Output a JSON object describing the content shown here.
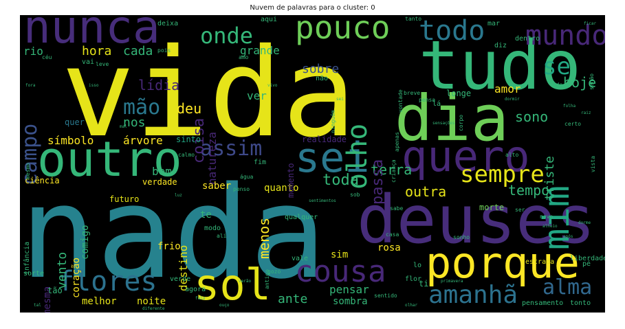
{
  "title": "Nuvem de palavras para o cluster: 0",
  "colors": {
    "yellow": "#e6e419",
    "green": "#35b779",
    "teal": "#26828e",
    "blue": "#31688e",
    "purple": "#482878",
    "violet": "#443983",
    "lime": "#90d743",
    "dark": "#3e4989"
  },
  "words": [
    {
      "text": "vida",
      "color": "#e6e419"
    },
    {
      "text": "nada",
      "color": "#26828e"
    },
    {
      "text": "tudo",
      "color": "#35b779"
    },
    {
      "text": "dia",
      "color": "#6ece58"
    },
    {
      "text": "deuses",
      "color": "#472d7b"
    },
    {
      "text": "outro",
      "color": "#35b779"
    },
    {
      "text": "nunca",
      "color": "#472d7b"
    },
    {
      "text": "sei",
      "color": "#2a788e"
    },
    {
      "text": "quero",
      "color": "#482878"
    },
    {
      "text": "porque",
      "color": "#fde725"
    },
    {
      "text": "sol",
      "color": "#e6e419"
    },
    {
      "text": "pouco",
      "color": "#6ece58"
    },
    {
      "text": "flores",
      "color": "#2c728e"
    },
    {
      "text": "cousa",
      "color": "#482878"
    },
    {
      "text": "mim",
      "color": "#22a884"
    },
    {
      "text": "mundo",
      "color": "#482878"
    },
    {
      "text": "todo",
      "color": "#2a788e"
    },
    {
      "text": "onde",
      "color": "#35b779"
    },
    {
      "text": "olho",
      "color": "#35b779"
    },
    {
      "text": "sempre",
      "color": "#e6e419"
    },
    {
      "text": "amanhã",
      "color": "#2c728e"
    },
    {
      "text": "alma",
      "color": "#31688e"
    },
    {
      "text": "campo",
      "color": "#3b528b"
    },
    {
      "text": "se",
      "color": "#22a884"
    },
    {
      "text": "assim",
      "color": "#3e4989"
    },
    {
      "text": "mão",
      "color": "#2a788e"
    },
    {
      "text": "hora",
      "color": "#e6e419"
    },
    {
      "text": "cada",
      "color": "#35b779"
    },
    {
      "text": "rio",
      "color": "#35b779"
    },
    {
      "text": "grande",
      "color": "#35b779"
    },
    {
      "text": "sobre",
      "color": "#3b528b"
    },
    {
      "text": "hoje",
      "color": "#35b779"
    },
    {
      "text": "sono",
      "color": "#35b779"
    },
    {
      "text": "amor",
      "color": "#fde725"
    },
    {
      "text": "terra",
      "color": "#35b779"
    },
    {
      "text": "outra",
      "color": "#e6e419"
    },
    {
      "text": "tempo",
      "color": "#35b779"
    },
    {
      "text": "toda",
      "color": "#35b779"
    },
    {
      "text": "triste",
      "color": "#35b779"
    },
    {
      "text": "coisa",
      "color": "#482878"
    },
    {
      "text": "lídia",
      "color": "#482878"
    },
    {
      "text": "natureza",
      "color": "#482878"
    },
    {
      "text": "deu",
      "color": "#fde725"
    },
    {
      "text": "nos",
      "color": "#35b779"
    },
    {
      "text": "ver",
      "color": "#35b779"
    },
    {
      "text": "passa",
      "color": "#482878"
    },
    {
      "text": "símbolo",
      "color": "#fde725"
    },
    {
      "text": "árvore",
      "color": "#fde725"
    },
    {
      "text": "sinto",
      "color": "#22a884"
    },
    {
      "text": "quer",
      "color": "#2a788e"
    },
    {
      "text": "ciência",
      "color": "#fde725"
    },
    {
      "text": "verdade",
      "color": "#fde725"
    },
    {
      "text": "saber",
      "color": "#fde725"
    },
    {
      "text": "bem",
      "color": "#35b779"
    },
    {
      "text": "quanto",
      "color": "#e6e419"
    },
    {
      "text": "menos",
      "color": "#fde725"
    },
    {
      "text": "comigo",
      "color": "#35b779"
    },
    {
      "text": "vento",
      "color": "#35b779"
    },
    {
      "text": "futuro",
      "color": "#e6e419"
    },
    {
      "text": "destino",
      "color": "#e6e419"
    },
    {
      "text": "coração",
      "color": "#fde725"
    },
    {
      "text": "mesma",
      "color": "#482878"
    },
    {
      "text": "frio",
      "color": "#fde725"
    },
    {
      "text": "melhor",
      "color": "#e6e419"
    },
    {
      "text": "noite",
      "color": "#e6e419"
    },
    {
      "text": "ante",
      "color": "#35b779"
    },
    {
      "text": "pensar",
      "color": "#35b779"
    },
    {
      "text": "sombra",
      "color": "#35b779"
    },
    {
      "text": "rosa",
      "color": "#fde725"
    },
    {
      "text": "sim",
      "color": "#e6e419"
    },
    {
      "text": "morte",
      "color": "#6ece58"
    },
    {
      "text": "pensamento",
      "color": "#35b779"
    },
    {
      "text": "tonto",
      "color": "#35b779"
    },
    {
      "text": "estrada",
      "color": "#e6e419"
    },
    {
      "text": "liberdade",
      "color": "#35b779"
    },
    {
      "text": "momento",
      "color": "#482878"
    },
    {
      "text": "realidade",
      "color": "#482878"
    },
    {
      "text": "longe",
      "color": "#35b779"
    },
    {
      "text": "não",
      "color": "#35b779"
    },
    {
      "text": "aqui",
      "color": "#35b779"
    },
    {
      "text": "deixa",
      "color": "#35b779"
    },
    {
      "text": "mar",
      "color": "#35b779"
    },
    {
      "text": "dentro",
      "color": "#35b779"
    },
    {
      "text": "diz",
      "color": "#35b779"
    },
    {
      "text": "vai",
      "color": "#35b779"
    },
    {
      "text": "céu",
      "color": "#35b779"
    },
    {
      "text": "tão",
      "color": "#35b779"
    },
    {
      "text": "sorte",
      "color": "#35b779"
    },
    {
      "text": "agora",
      "color": "#35b779"
    },
    {
      "text": "verde",
      "color": "#35b779"
    },
    {
      "text": "te",
      "color": "#35b779"
    },
    {
      "text": "modo",
      "color": "#35b779"
    },
    {
      "text": "vale",
      "color": "#35b779"
    },
    {
      "text": "qualquer",
      "color": "#35b779"
    },
    {
      "text": "casa",
      "color": "#35b779"
    },
    {
      "text": "flor",
      "color": "#35b779"
    },
    {
      "text": "lá",
      "color": "#35b779"
    },
    {
      "text": "lo",
      "color": "#35b779"
    },
    {
      "text": "ti",
      "color": "#35b779"
    },
    {
      "text": "pé",
      "color": "#35b779"
    },
    {
      "text": "fim",
      "color": "#35b779"
    },
    {
      "text": "calmo",
      "color": "#35b779"
    },
    {
      "text": "novo",
      "color": "#35b779"
    },
    {
      "text": "antigo",
      "color": "#35b779"
    },
    {
      "text": "infância",
      "color": "#35b779"
    },
    {
      "text": "sentido",
      "color": "#35b779"
    },
    {
      "text": "ali",
      "color": "#35b779"
    },
    {
      "text": "sob",
      "color": "#35b779"
    },
    {
      "text": "alto",
      "color": "#35b779"
    },
    {
      "text": "certo",
      "color": "#35b779"
    },
    {
      "text": "lado",
      "color": "#35b779"
    },
    {
      "text": "sonho",
      "color": "#35b779"
    },
    {
      "text": "tanto",
      "color": "#35b779"
    },
    {
      "text": "vista",
      "color": "#35b779"
    },
    {
      "text": "breve",
      "color": "#35b779"
    },
    {
      "text": "leve",
      "color": "#35b779"
    },
    {
      "text": "criança",
      "color": "#35b779"
    },
    {
      "text": "senão",
      "color": "#35b779"
    },
    {
      "text": "corpo",
      "color": "#35b779"
    },
    {
      "text": "apenas",
      "color": "#35b779"
    },
    {
      "text": "pois",
      "color": "#35b779"
    },
    {
      "text": "amo",
      "color": "#35b779"
    },
    {
      "text": "ninguém",
      "color": "#35b779"
    },
    {
      "text": "vontade",
      "color": "#35b779"
    },
    {
      "text": "primavera",
      "color": "#35b779"
    },
    {
      "text": "gozo",
      "color": "#35b779"
    },
    {
      "text": "mesmo",
      "color": "#35b779"
    },
    {
      "text": "água",
      "color": "#35b779"
    },
    {
      "text": "falo",
      "color": "#35b779"
    },
    {
      "text": "penso",
      "color": "#35b779"
    },
    {
      "text": "sentimentos",
      "color": "#35b779"
    },
    {
      "text": "sabe",
      "color": "#35b779"
    },
    {
      "text": "verão",
      "color": "#35b779"
    },
    {
      "text": "pensa",
      "color": "#35b779"
    },
    {
      "text": "mal",
      "color": "#35b779"
    },
    {
      "text": "luz",
      "color": "#35b779"
    },
    {
      "text": "ser",
      "color": "#35b779"
    },
    {
      "text": "fora",
      "color": "#35b779"
    },
    {
      "text": "isso",
      "color": "#35b779"
    },
    {
      "text": "diferente",
      "color": "#35b779"
    },
    {
      "text": "dormir",
      "color": "#35b779"
    },
    {
      "text": "sei",
      "color": "#35b779"
    },
    {
      "text": "ouço",
      "color": "#35b779"
    },
    {
      "text": "olhar",
      "color": "#35b779"
    },
    {
      "text": "tal",
      "color": "#35b779"
    },
    {
      "text": "sensações",
      "color": "#35b779"
    },
    {
      "text": "dorme",
      "color": "#35b779"
    },
    {
      "text": "após",
      "color": "#35b779"
    },
    {
      "text": "alheio",
      "color": "#35b779"
    },
    {
      "text": "vivo",
      "color": "#35b779"
    },
    {
      "text": "ficar",
      "color": "#35b779"
    },
    {
      "text": "folha",
      "color": "#35b779"
    },
    {
      "text": "raiz",
      "color": "#35b779"
    }
  ]
}
